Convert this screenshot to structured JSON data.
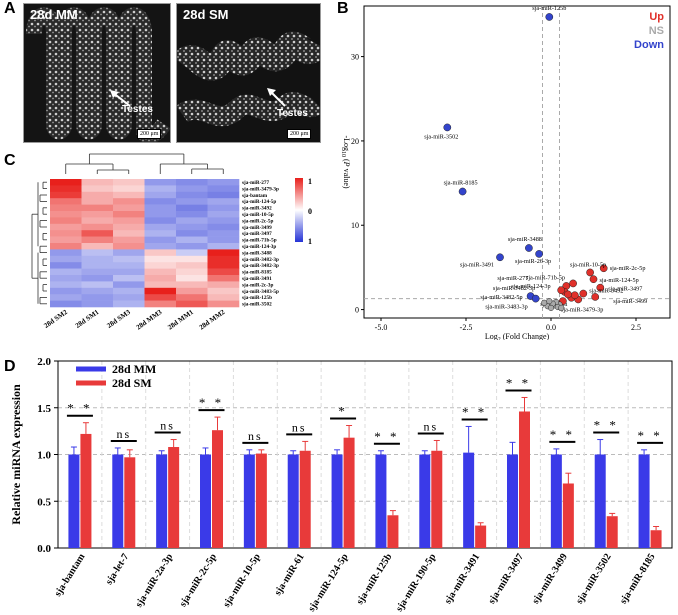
{
  "panels": {
    "a": "A",
    "b": "B",
    "c": "C",
    "d": "D"
  },
  "micrographs": [
    {
      "label": "28d MM",
      "annotation": "Testes",
      "scale": "200 μm"
    },
    {
      "label": "28d SM",
      "annotation": "Testes",
      "scale": "200 μm"
    }
  ],
  "volcano": {
    "xlabel_pre": "Log",
    "xlabel_sub": "2",
    "xlabel_post": " (Fold Change)",
    "ylabel_pre": "-Log",
    "ylabel_sub": "10",
    "ylabel_mid": " (",
    "ylabel_p": "P",
    "ylabel_post": " value)",
    "legend": [
      {
        "name": "Up",
        "color": "#e0302a"
      },
      {
        "name": "NS",
        "color": "#aaaaaa"
      },
      {
        "name": "Down",
        "color": "#3344cc"
      }
    ]
  },
  "heatmap": {
    "colorbar_ticks": [
      "1",
      "0",
      "1"
    ],
    "high_color": "#e8201c",
    "mid_color": "#ffffff",
    "low_color": "#2533d6"
  },
  "chart_data": [
    {
      "type": "scatter",
      "title": "",
      "xlabel": "Log2 (Fold Change)",
      "ylabel": "-Log10 (P value)",
      "xlim": [
        -5.5,
        3.5
      ],
      "ylim": [
        -1,
        36
      ],
      "xticks": [
        "-5.0",
        "-2.5",
        "0.0",
        "2.5"
      ],
      "yticks": [
        "0",
        "10",
        "20",
        "30"
      ],
      "threshold_x": [
        -0.25,
        0.25
      ],
      "threshold_y": 1.3,
      "points": [
        {
          "name": "sja-miR-125b",
          "x": -0.05,
          "y": 34.7,
          "group": "Down"
        },
        {
          "name": "sja-miR-3502",
          "x": -3.05,
          "y": 21.6,
          "group": "Down"
        },
        {
          "name": "sja-miR-8185",
          "x": -2.6,
          "y": 14.0,
          "group": "Down"
        },
        {
          "name": "sja-miR-3488",
          "x": -0.65,
          "y": 7.3,
          "group": "Down"
        },
        {
          "name": "sja-miR-26-3p",
          "x": -0.35,
          "y": 6.6,
          "group": "Down"
        },
        {
          "name": "sja-miR-3491",
          "x": -1.5,
          "y": 6.2,
          "group": "Down"
        },
        {
          "name": "sja-miR-3482-5p",
          "x": -0.6,
          "y": 1.6,
          "group": "Down"
        },
        {
          "name": "sja-miR-3483-3p",
          "x": -0.45,
          "y": 1.3,
          "group": "Down"
        },
        {
          "name": "sja-miR-2c-5p",
          "x": 1.55,
          "y": 4.9,
          "group": "Up"
        },
        {
          "name": "sja-miR-10-5p",
          "x": 1.15,
          "y": 4.4,
          "group": "Up"
        },
        {
          "name": "sja-miR-124-5p",
          "x": 1.25,
          "y": 3.6,
          "group": "Up"
        },
        {
          "name": "sja-miR-71b-5p",
          "x": 0.65,
          "y": 3.1,
          "group": "Up"
        },
        {
          "name": "sja-miR-3497",
          "x": 1.45,
          "y": 2.6,
          "group": "Up"
        },
        {
          "name": "sja-miR-277",
          "x": 0.45,
          "y": 2.8,
          "group": "Up"
        },
        {
          "name": "sja-miR-124-3p",
          "x": 0.4,
          "y": 2.1,
          "group": "Up"
        },
        {
          "name": "sja-miR-3482-3p",
          "x": 0.3,
          "y": 2.3,
          "group": "Up"
        },
        {
          "name": "sja-miR-3492",
          "x": 0.95,
          "y": 1.9,
          "group": "Up"
        },
        {
          "name": "sja-miR-3499",
          "x": 1.3,
          "y": 1.5,
          "group": "Up"
        },
        {
          "name": "sja-bantam",
          "x": 0.6,
          "y": 1.4,
          "group": "Up"
        },
        {
          "name": "sja-miR-3479-3p",
          "x": 0.8,
          "y": 1.2,
          "group": "Up"
        },
        {
          "name": "",
          "x": 0.35,
          "y": 1.0,
          "group": "Up"
        },
        {
          "name": "",
          "x": 0.7,
          "y": 1.7,
          "group": "Up"
        },
        {
          "name": "",
          "x": 0.5,
          "y": 1.8,
          "group": "Up"
        },
        {
          "name": "",
          "x": 0.25,
          "y": 0.6,
          "group": "NS"
        },
        {
          "name": "",
          "x": 0.1,
          "y": 0.5,
          "group": "NS"
        },
        {
          "name": "",
          "x": -0.1,
          "y": 0.4,
          "group": "NS"
        },
        {
          "name": "",
          "x": 0.2,
          "y": 0.3,
          "group": "NS"
        },
        {
          "name": "",
          "x": 0.15,
          "y": 0.9,
          "group": "NS"
        },
        {
          "name": "",
          "x": 0.05,
          "y": 0.7,
          "group": "NS"
        },
        {
          "name": "",
          "x": -0.2,
          "y": 0.8,
          "group": "NS"
        },
        {
          "name": "",
          "x": 0.3,
          "y": 0.2,
          "group": "NS"
        },
        {
          "name": "",
          "x": 0.0,
          "y": 0.2,
          "group": "NS"
        },
        {
          "name": "",
          "x": -0.05,
          "y": 1.0,
          "group": "NS"
        }
      ]
    },
    {
      "type": "heatmap",
      "title": "",
      "columns": [
        "28d SM2",
        "28d SM1",
        "28d SM3",
        "28d MM3",
        "28d MM1",
        "28d MM2"
      ],
      "rows": [
        "sja-miR-277",
        "sja-miR-3479-3p",
        "sja-bantam",
        "sja-miR-124-5p",
        "sja-miR-3492",
        "sja-miR-10-5p",
        "sja-miR-2c-5p",
        "sja-miR-3499",
        "sja-miR-3497",
        "sja-miR-71b-5p",
        "sja-miR-124-3p",
        "sja-miR-3488",
        "sja-miR-3482-3p",
        "sja-miR-3482-3p",
        "sja-miR-8185",
        "sja-miR-3491",
        "sja-miR-2c-3p",
        "sja-miR-3483-5p",
        "sja-miR-125b",
        "sja-miR-3502"
      ],
      "values": [
        [
          1.6,
          0.5,
          0.4,
          -0.8,
          -0.9,
          -0.8
        ],
        [
          1.5,
          0.4,
          0.3,
          -0.6,
          -0.8,
          -0.9
        ],
        [
          1.4,
          0.6,
          0.5,
          -0.7,
          -0.9,
          -1.0
        ],
        [
          1.0,
          0.6,
          0.8,
          -0.9,
          -0.8,
          -0.7
        ],
        [
          0.9,
          0.9,
          0.7,
          -0.8,
          -1.0,
          -0.8
        ],
        [
          0.8,
          0.7,
          0.9,
          -0.8,
          -0.9,
          -0.7
        ],
        [
          0.9,
          0.6,
          0.7,
          -0.9,
          -0.7,
          -0.8
        ],
        [
          0.7,
          0.8,
          0.6,
          -0.7,
          -0.8,
          -0.9
        ],
        [
          0.8,
          1.2,
          0.5,
          -0.6,
          -0.9,
          -0.8
        ],
        [
          0.7,
          0.9,
          0.7,
          -0.8,
          -0.6,
          -0.8
        ],
        [
          0.9,
          0.5,
          0.8,
          -0.7,
          -0.8,
          -0.6
        ],
        [
          -0.8,
          -0.5,
          -0.7,
          0.4,
          -0.4,
          1.6
        ],
        [
          -0.7,
          -0.6,
          -0.5,
          0.2,
          0.2,
          1.5
        ],
        [
          -0.9,
          -0.6,
          -0.6,
          0.3,
          0.4,
          1.5
        ],
        [
          -0.6,
          -0.7,
          -0.7,
          0.5,
          0.3,
          1.3
        ],
        [
          -0.7,
          -0.8,
          -0.5,
          0.6,
          0.2,
          1.0
        ],
        [
          -0.6,
          -0.5,
          -0.8,
          0.5,
          0.5,
          0.6
        ],
        [
          -0.8,
          -0.7,
          -0.6,
          1.6,
          0.7,
          0.4
        ],
        [
          -0.7,
          -0.8,
          -0.7,
          1.3,
          1.0,
          0.5
        ],
        [
          -0.9,
          -0.8,
          -0.6,
          0.9,
          1.2,
          0.8
        ]
      ]
    },
    {
      "type": "bar",
      "title": "",
      "xlabel": "",
      "ylabel": "Relative miRNA expression",
      "ylim": [
        0,
        2.0
      ],
      "yticks": [
        "0.0",
        "0.5",
        "1.0",
        "1.5",
        "2.0"
      ],
      "categories": [
        "sja-bantam",
        "sja-let-7",
        "sja-miR-2a-3p",
        "sja-miR-2c-5p",
        "sja-miR-10-5p",
        "sja-miR-61",
        "sja-miR-124-5p",
        "sja-miR-125b",
        "sja-miR-190-5p",
        "sja-miR-3491",
        "sja-miR-3497",
        "sja-miR-3499",
        "sja-miR-3502",
        "sja-miR-8185"
      ],
      "series": [
        {
          "name": "28d MM",
          "color": "#3a3ae8",
          "values": [
            1.0,
            1.0,
            1.0,
            1.0,
            1.0,
            1.0,
            1.0,
            1.0,
            1.0,
            1.02,
            1.0,
            1.0,
            1.0,
            1.0
          ],
          "errors": [
            0.08,
            0.07,
            0.04,
            0.07,
            0.05,
            0.04,
            0.05,
            0.04,
            0.04,
            0.28,
            0.13,
            0.06,
            0.16,
            0.05
          ]
        },
        {
          "name": "28d SM",
          "color": "#e83a3a",
          "values": [
            1.22,
            0.97,
            1.08,
            1.26,
            1.01,
            1.04,
            1.18,
            0.35,
            1.04,
            0.24,
            1.46,
            0.69,
            0.34,
            0.19
          ],
          "errors": [
            0.12,
            0.08,
            0.08,
            0.14,
            0.04,
            0.1,
            0.13,
            0.05,
            0.11,
            0.03,
            0.15,
            0.11,
            0.03,
            0.04
          ]
        }
      ],
      "significance": [
        "**",
        "ns",
        "ns",
        "**",
        "ns",
        "ns",
        "*",
        "**",
        "ns",
        "**",
        "**",
        "**",
        "**",
        "**"
      ],
      "legend": [
        "28d MM",
        "28d SM"
      ]
    }
  ]
}
